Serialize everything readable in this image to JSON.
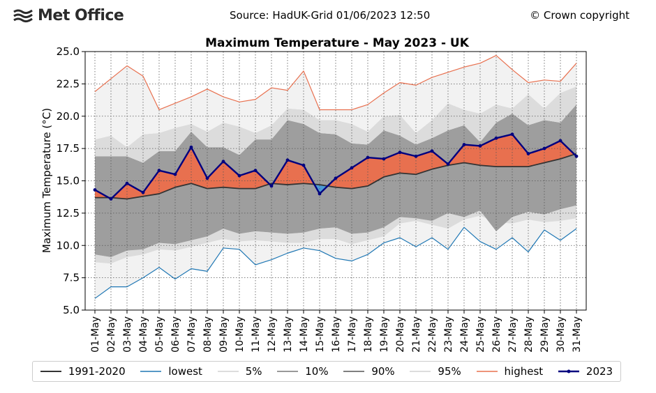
{
  "header": {
    "logo_text": "Met Office",
    "source": "Source: HadUK-Grid 01/06/2023 12:50",
    "copyright": "© Crown copyright"
  },
  "chart_data": {
    "type": "line",
    "title": "Maximum Temperature - May 2023 - UK",
    "ylabel": "Maximum Temperature (°C)",
    "xlabel": "",
    "ylim": [
      5.0,
      25.0
    ],
    "yticks": [
      "5.0",
      "7.5",
      "10.0",
      "12.5",
      "15.0",
      "17.5",
      "20.0",
      "22.5",
      "25.0"
    ],
    "grid": true,
    "legend_position": "bottom",
    "categories": [
      "01-May",
      "02-May",
      "03-May",
      "04-May",
      "05-May",
      "06-May",
      "07-May",
      "08-May",
      "09-May",
      "10-May",
      "11-May",
      "12-May",
      "13-May",
      "14-May",
      "15-May",
      "16-May",
      "17-May",
      "18-May",
      "19-May",
      "20-May",
      "21-May",
      "22-May",
      "23-May",
      "24-May",
      "25-May",
      "26-May",
      "27-May",
      "28-May",
      "29-May",
      "30-May",
      "31-May"
    ],
    "series": [
      {
        "name": "1991-2020",
        "color": "#333333",
        "values": [
          13.7,
          13.7,
          13.6,
          13.8,
          14.0,
          14.5,
          14.8,
          14.4,
          14.5,
          14.4,
          14.4,
          14.8,
          14.7,
          14.8,
          14.7,
          14.5,
          14.4,
          14.6,
          15.3,
          15.6,
          15.5,
          15.9,
          16.2,
          16.4,
          16.2,
          16.1,
          16.1,
          16.1,
          16.4,
          16.7,
          17.1
        ]
      },
      {
        "name": "lowest",
        "color": "#1f77b4",
        "values": [
          5.9,
          6.8,
          6.8,
          7.5,
          8.3,
          7.4,
          8.2,
          8.0,
          9.8,
          9.7,
          8.5,
          8.9,
          9.4,
          9.8,
          9.6,
          9.0,
          8.8,
          9.3,
          10.2,
          10.6,
          9.9,
          10.6,
          9.7,
          11.4,
          10.3,
          9.7,
          10.6,
          9.5,
          11.2,
          10.4,
          11.3
        ]
      },
      {
        "name": "5%",
        "color": "#e6e6e6",
        "values": [
          8.7,
          8.6,
          9.1,
          9.3,
          9.7,
          9.6,
          9.9,
          10.2,
          10.5,
          10.3,
          10.4,
          10.3,
          10.2,
          10.2,
          10.5,
          10.5,
          10.1,
          10.4,
          10.7,
          11.7,
          11.9,
          11.6,
          11.3,
          12.0,
          12.3,
          11.8,
          11.7,
          12.0,
          11.8,
          11.9,
          12.1
        ]
      },
      {
        "name": "10%",
        "color": "#a9a9a9",
        "values": [
          9.3,
          9.1,
          9.6,
          9.7,
          10.2,
          10.1,
          10.4,
          10.7,
          11.3,
          10.9,
          11.1,
          11.0,
          10.9,
          11.0,
          11.3,
          11.4,
          10.9,
          11.0,
          11.4,
          12.2,
          12.1,
          11.9,
          12.5,
          12.2,
          12.7,
          11.1,
          12.2,
          12.6,
          12.4,
          12.8,
          13.1
        ]
      },
      {
        "name": "90%",
        "color": "#7f7f7f",
        "values": [
          16.9,
          16.9,
          16.9,
          16.4,
          17.3,
          17.3,
          18.8,
          17.6,
          17.6,
          17.0,
          18.2,
          18.2,
          19.7,
          19.4,
          18.7,
          18.6,
          17.9,
          17.8,
          18.9,
          18.5,
          17.8,
          18.3,
          18.9,
          19.3,
          18.0,
          19.5,
          20.2,
          19.3,
          19.7,
          19.5,
          20.9
        ]
      },
      {
        "name": "95%",
        "color": "#d9d9d9",
        "values": [
          18.2,
          18.5,
          17.6,
          18.6,
          18.7,
          19.1,
          19.4,
          18.8,
          19.5,
          19.2,
          18.7,
          19.3,
          20.6,
          20.5,
          19.7,
          19.7,
          19.4,
          18.8,
          20.0,
          20.1,
          18.7,
          19.7,
          21.0,
          20.5,
          20.2,
          20.9,
          20.6,
          21.7,
          20.6,
          21.8,
          22.3
        ]
      },
      {
        "name": "highest",
        "color": "#e8704f",
        "values": [
          21.9,
          22.9,
          23.9,
          23.1,
          20.5,
          21.0,
          21.5,
          22.1,
          21.5,
          21.1,
          21.3,
          22.2,
          22.0,
          23.5,
          20.5,
          20.5,
          20.5,
          20.9,
          21.8,
          22.6,
          22.4,
          23.0,
          23.4,
          23.8,
          24.1,
          24.7,
          23.6,
          22.6,
          22.8,
          22.7,
          24.1
        ]
      },
      {
        "name": "2023",
        "color": "#00007f",
        "values": [
          14.3,
          13.6,
          14.8,
          14.1,
          15.8,
          15.5,
          17.6,
          15.2,
          16.5,
          15.4,
          15.8,
          14.6,
          16.6,
          16.2,
          14.0,
          15.2,
          16.0,
          16.8,
          16.7,
          17.2,
          16.9,
          17.3,
          16.3,
          17.8,
          17.7,
          18.3,
          18.6,
          17.1,
          17.5,
          18.1,
          16.9
        ]
      }
    ],
    "anomaly_fill_color": "#e8704f",
    "below_normal_fill_color": "#4a9bd6"
  }
}
